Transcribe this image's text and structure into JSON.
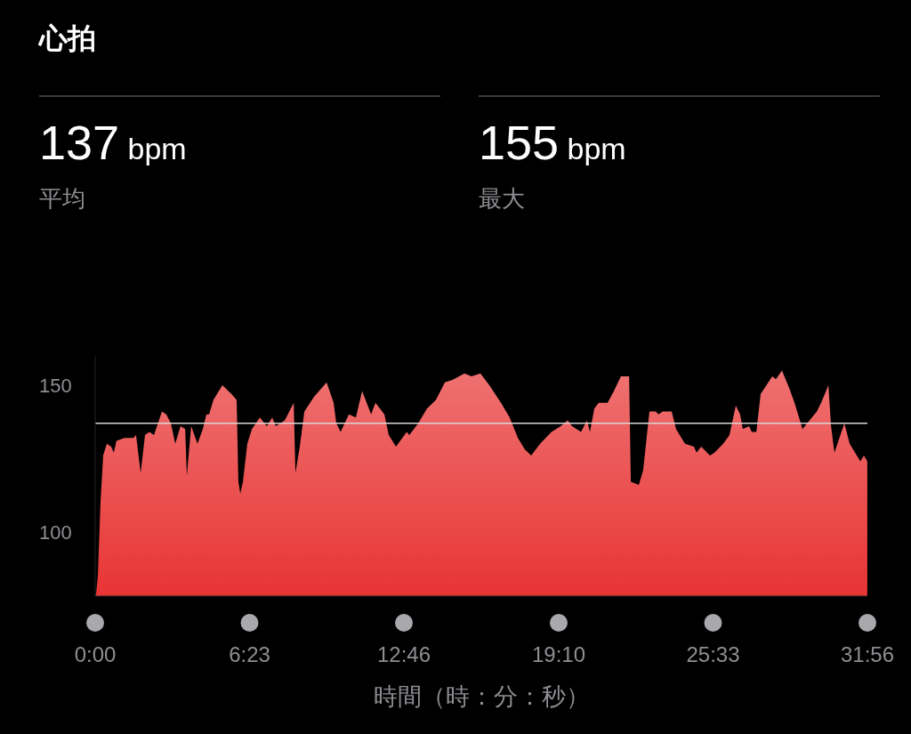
{
  "chart_data": {
    "type": "area",
    "title": "心拍",
    "annotations": [
      "137 bpm",
      "平均",
      "155 bpm",
      "最大"
    ],
    "xlabel": "時間（時：分：秒）",
    "x": [
      0,
      0.04,
      0.11,
      0.22,
      0.33,
      0.48,
      0.66,
      0.77,
      0.88,
      1.21,
      1.58,
      1.69,
      1.88,
      2.06,
      2.24,
      2.43,
      2.76,
      2.94,
      3.13,
      3.31,
      3.53,
      3.72,
      3.79,
      3.97,
      4.23,
      4.45,
      4.6,
      4.71,
      4.89,
      5.26,
      5.63,
      5.85,
      5.92,
      6.0,
      6.11,
      6.29,
      6.48,
      6.81,
      7.1,
      7.32,
      7.47,
      7.84,
      8.21,
      8.28,
      8.46,
      8.65,
      9.05,
      9.57,
      9.86,
      9.97,
      10.15,
      10.49,
      10.78,
      11.04,
      11.41,
      11.59,
      11.96,
      12.14,
      12.44,
      12.88,
      12.99,
      13.36,
      13.72,
      14.09,
      14.46,
      14.83,
      15.27,
      15.56,
      15.93,
      16.3,
      16.78,
      17.14,
      17.48,
      17.77,
      18.03,
      18.4,
      18.87,
      19.25,
      19.54,
      19.72,
      20.09,
      20.34,
      20.46,
      20.64,
      20.82,
      21.19,
      21.45,
      21.74,
      22.08,
      22.15,
      22.48,
      22.66,
      22.92,
      23.18,
      23.29,
      23.47,
      23.84,
      24.02,
      24.39,
      24.76,
      24.87,
      25.06,
      25.42,
      25.61,
      25.97,
      26.23,
      26.49,
      26.67,
      26.78,
      27.04,
      27.15,
      27.34,
      27.52,
      28.0,
      28.15,
      28.4,
      28.7,
      28.92,
      29.25,
      29.54,
      29.84,
      30.02,
      30.32,
      30.43,
      30.57,
      30.98,
      31.2,
      31.64,
      31.79,
      31.93
    ],
    "series": [
      {
        "color": "#e83434",
        "values": [
          78,
          79,
          85,
          110,
          126,
          130,
          129,
          127,
          131,
          132,
          132,
          133,
          120,
          133,
          134,
          133,
          141,
          140,
          137,
          130,
          136,
          135,
          119,
          136,
          130,
          135,
          140,
          140,
          145,
          150,
          147,
          145,
          117,
          113,
          117,
          130,
          135,
          139,
          136,
          139,
          136,
          138,
          144,
          120,
          129,
          141,
          146,
          151,
          144,
          137,
          134,
          140,
          139,
          148,
          140,
          144,
          140,
          133,
          129,
          134,
          133,
          137,
          142,
          145,
          151,
          152,
          154,
          153,
          154,
          150,
          144,
          139,
          132,
          128,
          126,
          130,
          134,
          136,
          138,
          136,
          134,
          138,
          134,
          142,
          144,
          144,
          148,
          153,
          153,
          117,
          116,
          121,
          141,
          141,
          140,
          141,
          141,
          135,
          130,
          129,
          127,
          129,
          126,
          127,
          130,
          133,
          143,
          140,
          135,
          136,
          134,
          134,
          147,
          153,
          152,
          155,
          149,
          144,
          135,
          138,
          141,
          144,
          150,
          136,
          127,
          137,
          130,
          124,
          126,
          124
        ]
      }
    ],
    "xlim": [
      0,
      31.9333
    ],
    "xticks": [
      {
        "value": 0,
        "label": "0:00"
      },
      {
        "value": 6.3833,
        "label": "6:23"
      },
      {
        "value": 12.7667,
        "label": "12:46"
      },
      {
        "value": 19.1667,
        "label": "19:10"
      },
      {
        "value": 25.55,
        "label": "25:33"
      },
      {
        "value": 31.9333,
        "label": "31:56"
      }
    ],
    "ylim": [
      78,
      160
    ],
    "yticks": [
      100,
      150
    ],
    "ref_lines": [
      {
        "axis": "y",
        "value": 137,
        "color": "#d8d8d8"
      }
    ],
    "grid": false,
    "legend": false
  }
}
